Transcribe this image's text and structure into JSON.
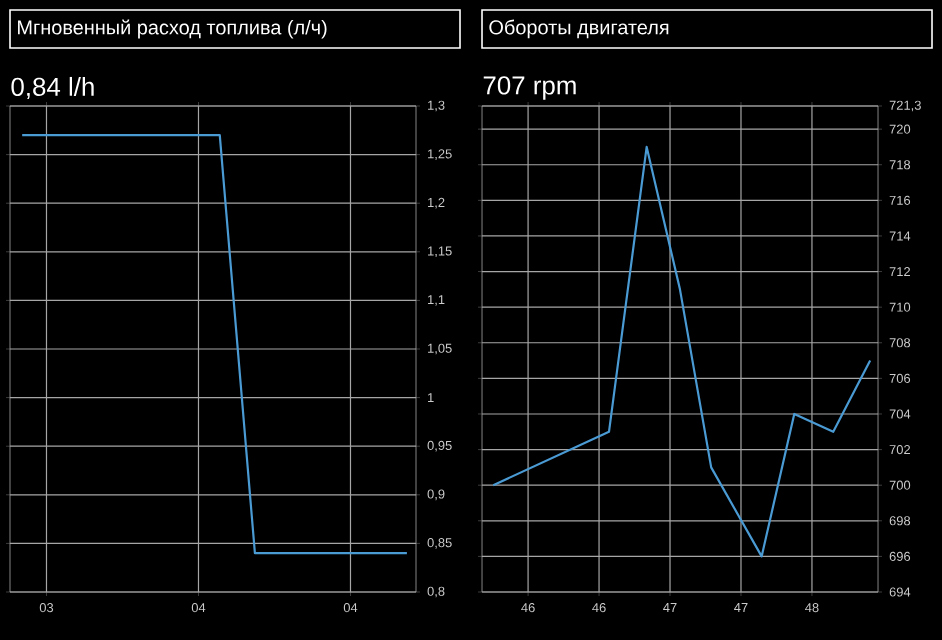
{
  "chart_data": [
    {
      "type": "line",
      "title": "Мгновенный расход топлива (л/ч)",
      "subtitle": "0,84 l/h",
      "x": [
        3.228,
        3.813,
        3.917,
        4.367
      ],
      "series": [
        {
          "color": "#4a9ad4",
          "values": [
            1.27,
            1.27,
            0.84,
            0.84
          ]
        }
      ],
      "xlim": [
        3.192,
        4.394
      ],
      "xticks": [
        {
          "value": 3.3,
          "label": "03"
        },
        {
          "value": 3.75,
          "label": "04"
        },
        {
          "value": 4.2,
          "label": "04"
        }
      ],
      "ylim": [
        0.8,
        1.3
      ],
      "yticks": [
        {
          "value": 0.8,
          "label": "0,8"
        },
        {
          "value": 0.85,
          "label": "0,85"
        },
        {
          "value": 0.9,
          "label": "0,9"
        },
        {
          "value": 0.95,
          "label": "0,95"
        },
        1,
        {
          "value": 1.05,
          "label": "1,05"
        },
        {
          "value": 1.1,
          "label": "1,1"
        },
        {
          "value": 1.15,
          "label": "1,15"
        },
        {
          "value": 1.2,
          "label": "1,2"
        },
        {
          "value": 1.25,
          "label": "1,25"
        },
        {
          "value": 1.3,
          "label": "1,3"
        }
      ],
      "grid": true
    },
    {
      "type": "line",
      "title": "Обороты двигателя",
      "subtitle": "707 rpm",
      "x": [
        45.53,
        46.427,
        46.719,
        46.977,
        47.219,
        47.61,
        47.863,
        48.165,
        48.451
      ],
      "series": [
        {
          "color": "#4a9ad4",
          "values": [
            700,
            703,
            719,
            711,
            701,
            696,
            704,
            703,
            707
          ]
        }
      ],
      "xlim": [
        45.443,
        48.512
      ],
      "xticks": [
        {
          "value": 45.8,
          "label": "46"
        },
        {
          "value": 46.35,
          "label": "46"
        },
        {
          "value": 46.9,
          "label": "47"
        },
        {
          "value": 47.45,
          "label": "47"
        },
        {
          "value": 48.0,
          "label": "48"
        }
      ],
      "ylim": [
        694,
        721.3
      ],
      "yticks": [
        694,
        696,
        698,
        700,
        702,
        704,
        706,
        708,
        710,
        712,
        714,
        716,
        718,
        720,
        {
          "value": 721.3,
          "label": "721,3"
        }
      ],
      "grid": true
    }
  ]
}
